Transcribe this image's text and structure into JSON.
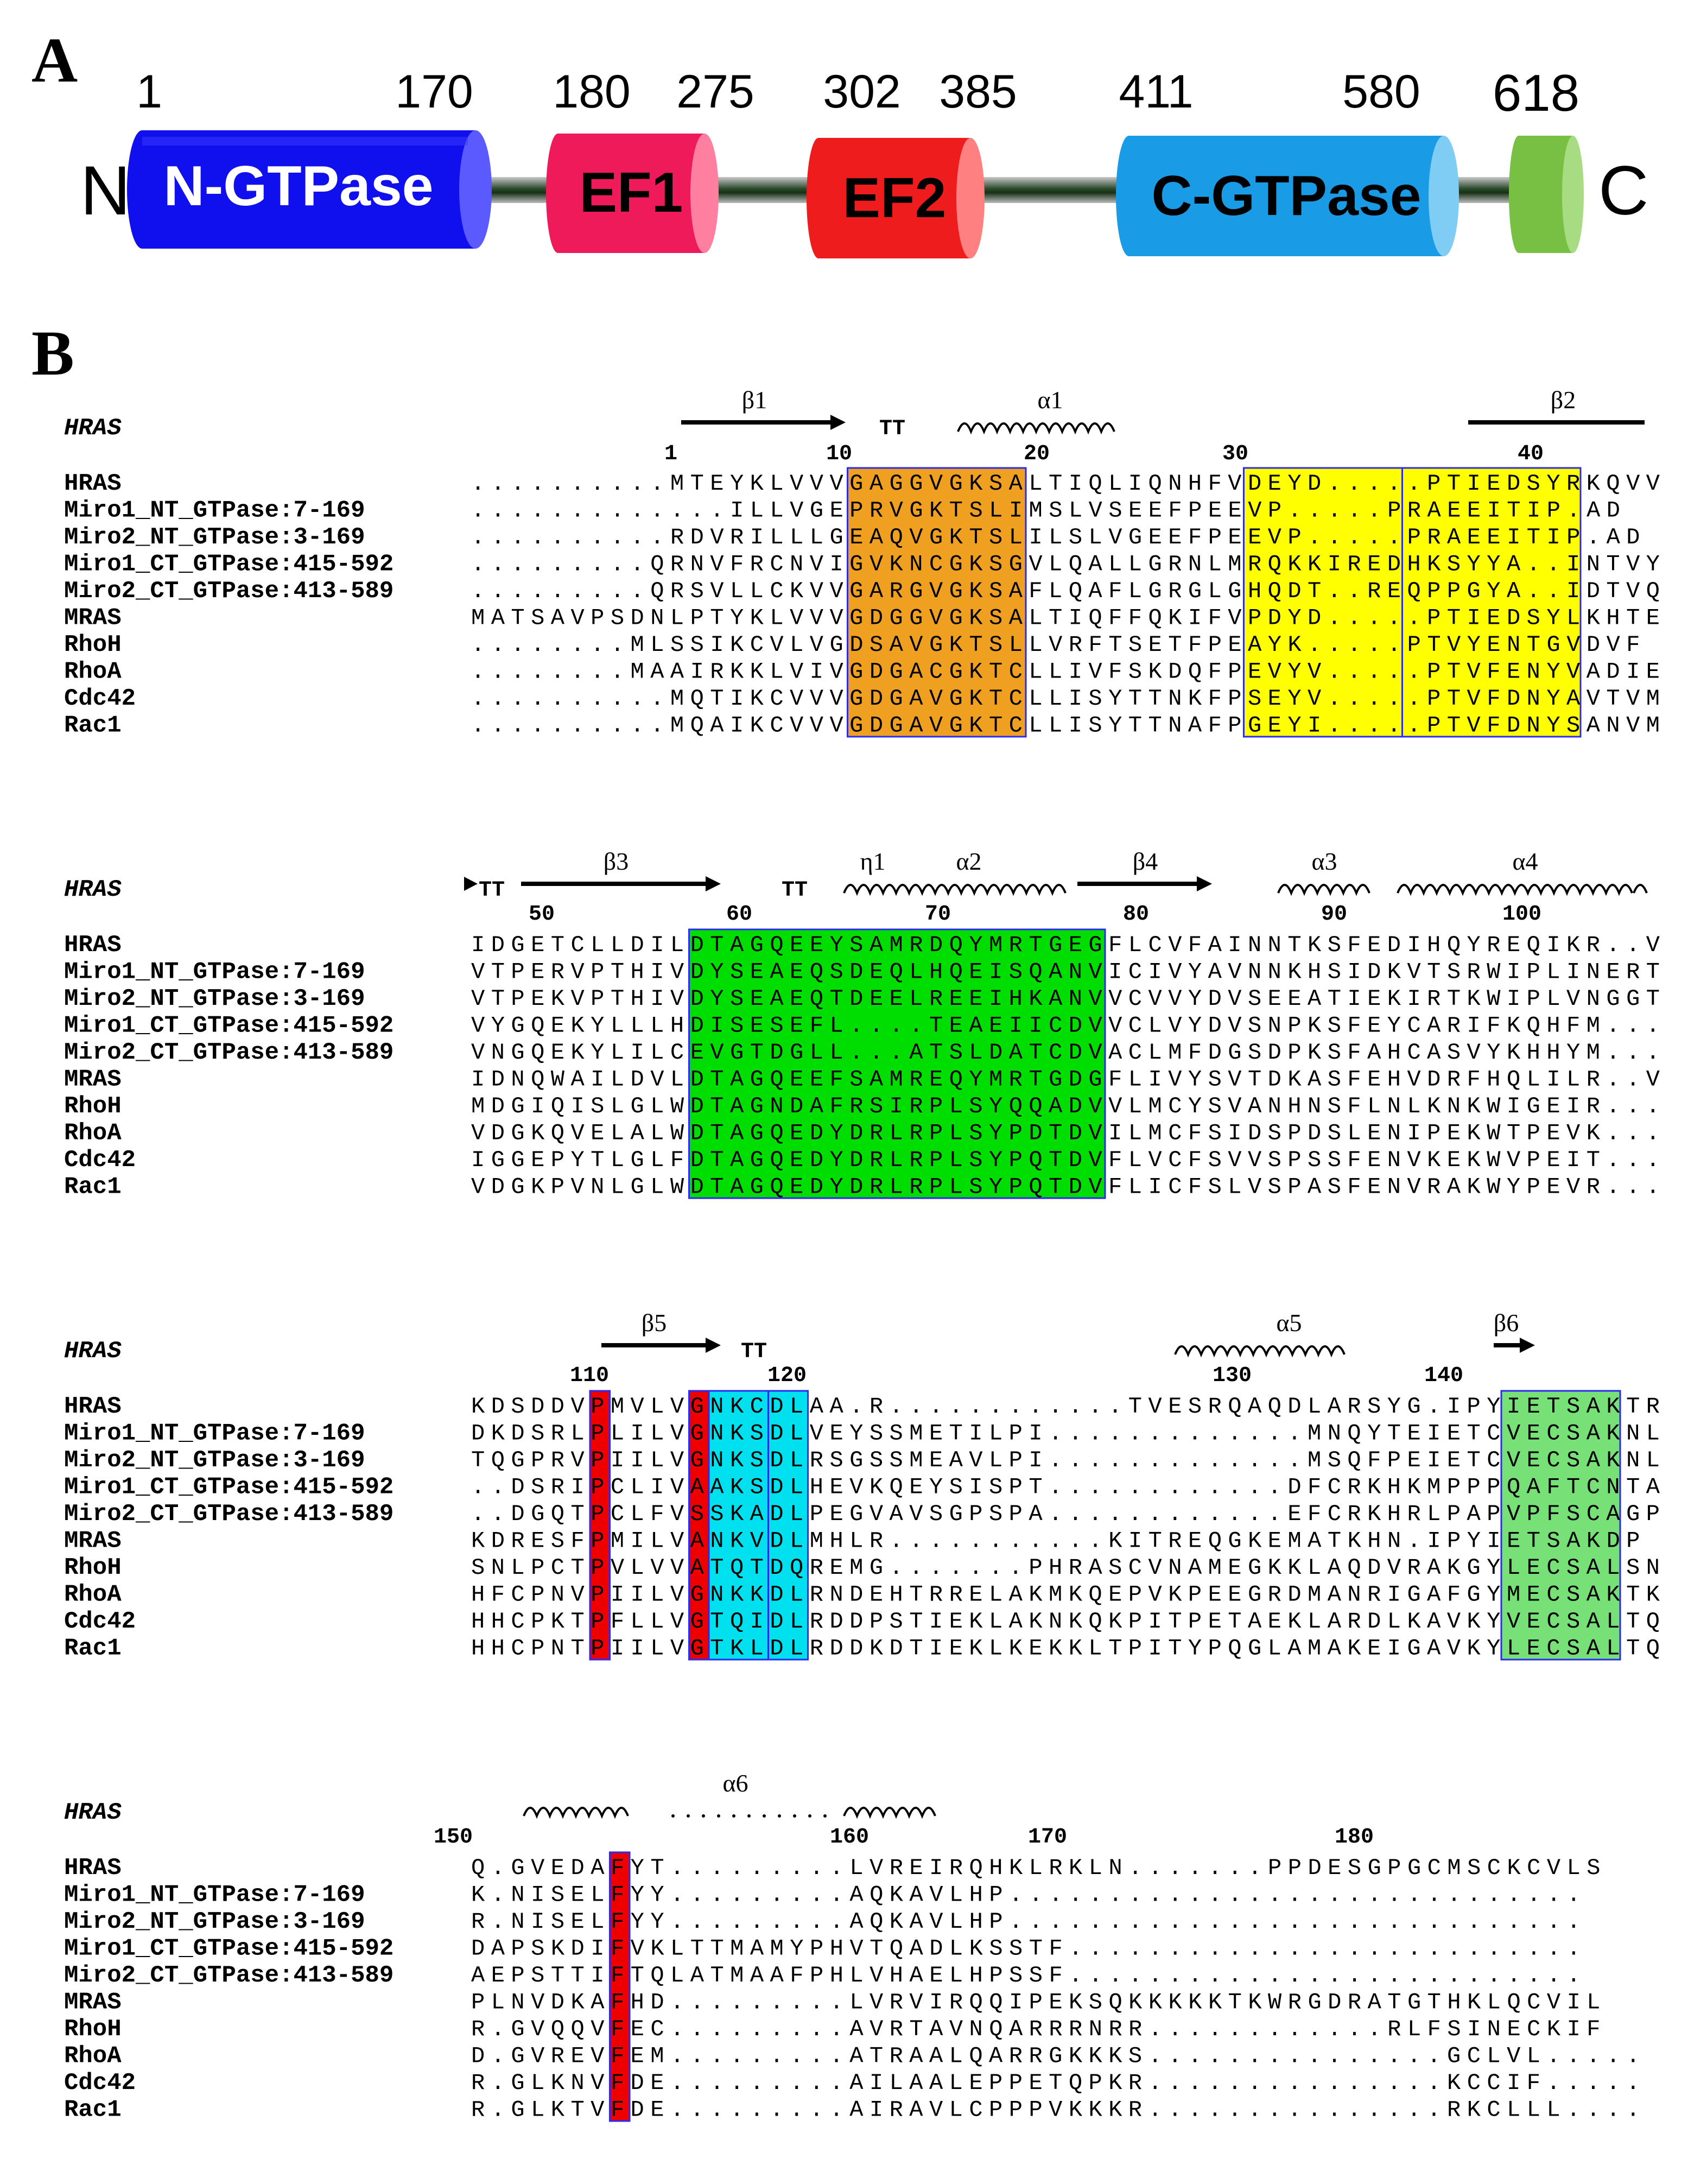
{
  "panel_a": {
    "letter": "A",
    "n_terminus": "N",
    "c_terminus": "C",
    "positions": [
      "1",
      "170",
      "180",
      "275",
      "302",
      "385",
      "411",
      "580",
      "618"
    ],
    "domains": [
      {
        "label": "N-GTPase",
        "color": "#1010ee"
      },
      {
        "label": "EF1",
        "color": "#ee1a5a"
      },
      {
        "label": "EF2",
        "color": "#ee1c1c"
      },
      {
        "label": "C-GTPase",
        "color": "#1a9be6"
      },
      {
        "label": "",
        "color": "#77c043"
      }
    ],
    "linker_color": "#1f3a1f"
  },
  "panel_b": {
    "letter": "B",
    "colors": {
      "orange": "#f0a020",
      "yellow": "#ffff00",
      "green": "#00dd00",
      "light_green": "#77e077",
      "cyan": "#00e0ee",
      "red": "#ee0000",
      "box_outline": "#2a2af0",
      "similar_text": "#ee2222"
    },
    "blocks": [
      {
        "ref_label": "HRAS",
        "ss_labels": [
          "β1",
          "α1",
          "β2"
        ],
        "tt": [
          "TT"
        ],
        "ruler": [
          "1",
          "10",
          "20",
          "30",
          "40"
        ],
        "rows": [
          {
            "name": "HRAS",
            "seq": "..........MTEYKLVVVGAGGVGKSALTIQLIQNHFVDEYD.....PTIEDSYRKQVV"
          },
          {
            "name": "Miro1_NT_GTPase:7-169",
            "seq": ".............ILLVGEPRVGKTSLIMSLVSEEFPEEVP.....PRAEEITIP.AD"
          },
          {
            "name": "Miro2_NT_GTPase:3-169",
            "seq": "..........RDVRILLLGEAQVGKTSLILSLVGEEFPEEVP.....PRAEEITIP.AD"
          },
          {
            "name": "Miro1_CT_GTPase:415-592",
            "seq": ".........QRNVFRCNVIGVKNCGKSGVLQALLGRNLMRQKKIREDHKSYYA..INTVY"
          },
          {
            "name": "Miro2_CT_GTPase:413-589",
            "seq": ".........QRSVLLCKVVGARGVGKSAFLQAFLGRGLGHQDT..REQPPGYA..IDTVQ"
          },
          {
            "name": "MRAS",
            "seq": "MATSAVPSDNLPTYKLVVVGDGGVGKSALTIQFFQKIFVPDYD.....PTIEDSYLKHTE"
          },
          {
            "name": "RhoH",
            "seq": "........MLSSIKCVLVGDSAVGKTSLLVRFTSETFPEAYK.....PTVYENTGVDVF"
          },
          {
            "name": "RhoA",
            "seq": "........MAAIRKKLVIVGDGACGKTCLLIVFSKDQFPEVYV.....PTVFENYVADIE"
          },
          {
            "name": "Cdc42",
            "seq": "..........MQTIKCVVVGDGAVGKTCLLISYTTNKFPSEYV.....PTVFDNYAVTVM"
          },
          {
            "name": "Rac1",
            "seq": "..........MQAIKCVVVGDGAVGKTCLLISYTTNAFPGEYI.....PTVFDNYSANVM"
          }
        ]
      },
      {
        "ref_label": "HRAS",
        "ss_labels": [
          "β3",
          "η1",
          "α2",
          "β4",
          "α3",
          "α4"
        ],
        "tt": [
          "TT",
          "TT"
        ],
        "ruler": [
          "50",
          "60",
          "70",
          "80",
          "90",
          "100"
        ],
        "rows": [
          {
            "name": "HRAS",
            "seq": "IDGETCLLDILDTAGQEEYSAMRDQYMRTGEGFLCVFAINNTKSFEDIHQYREQIKR..V"
          },
          {
            "name": "Miro1_NT_GTPase:7-169",
            "seq": "VTPERVPTHIVDYSEAEQSDEQLHQEISQANVICIVYAVNNKHSIDKVTSRWIPLINERT"
          },
          {
            "name": "Miro2_NT_GTPase:3-169",
            "seq": "VTPEKVPTHIVDYSEAEQTDEELREEIHKANVVCVVYDVSEEATIEKIRTKWIPLVNGGT"
          },
          {
            "name": "Miro1_CT_GTPase:415-592",
            "seq": "VYGQEKYLLLHDISESEFL....TEAEIICDVVCLVYDVSNPKSFEYCARIFKQHFM..."
          },
          {
            "name": "Miro2_CT_GTPase:413-589",
            "seq": "VNGQEKYLILCEVGTDGLL...ATSLDATCDVACLMFDGSDPKSFAHCASVYKHHYM..."
          },
          {
            "name": "MRAS",
            "seq": "IDNQWAILDVLDTAGQEEFSAMREQYMRTGDGFLIVYSVTDKASFEHVDRFHQLILR..V"
          },
          {
            "name": "RhoH",
            "seq": "MDGIQISLGLWDTAGNDAFRSIRPLSYQQADVVLMCYSVANHNSFLNLKNKWIGEIR..."
          },
          {
            "name": "RhoA",
            "seq": "VDGKQVELALWDTAGQEDYDRLRPLSYPDTDVILMCFSIDSPDSLENIPEKWTPEVK..."
          },
          {
            "name": "Cdc42",
            "seq": "IGGEPYTLGLFDTAGQEDYDRLRPLSYPQTDVFLVCFSVVSPSSFENVKEKWVPEIT..."
          },
          {
            "name": "Rac1",
            "seq": "VDGKPVNLGLWDTAGQEDYDRLRPLSYPQTDVFLICFSLVSPASFENVRAKWYPEVR..."
          }
        ]
      },
      {
        "ref_label": "HRAS",
        "ss_labels": [
          "β5",
          "α5",
          "β6"
        ],
        "tt": [
          "TT"
        ],
        "ruler": [
          "110",
          "120",
          "130",
          "140"
        ],
        "rows": [
          {
            "name": "HRAS",
            "seq": "KDSDDVPMVLVGNKCDLAA.R............TVESRQAQDLARSYG.IPYIETSAKTR"
          },
          {
            "name": "Miro1_NT_GTPase:7-169",
            "seq": "DKDSRLPLILVGNKSDLVEYSSMETILPI.............MNQYTEIETCVECSAKNL"
          },
          {
            "name": "Miro2_NT_GTPase:3-169",
            "seq": "TQGPRVPIILVGNKSDLRSGSSMEAVLPI.............MSQFPEIETCVECSAKNL"
          },
          {
            "name": "Miro1_CT_GTPase:415-592",
            "seq": "..DSRIPCLIVAAKSDLHEVKQEYSISPT............DFCRKHKMPPPQAFTCNTA"
          },
          {
            "name": "Miro2_CT_GTPase:413-589",
            "seq": "..DGQTPCLFVSSKADLPEGVAVSGPSPA............EFCRKHRLPAPVPFSCAGP"
          },
          {
            "name": "MRAS",
            "seq": "KDRESFPMILVANKVDLMHLR...........KITREQGKEMATKHN.IPYIETSAKDP"
          },
          {
            "name": "RhoH",
            "seq": "SNLPCTPVLVVATQTDQREMG.......PHRASCVNAMEGKKLAQDVRAKGYLECSALSN"
          },
          {
            "name": "RhoA",
            "seq": "HFCPNVPIILVGNKKDLRNDEHTRRELAKMKQEPVKPEEGRDMANRIGAFGYMECSAKTK"
          },
          {
            "name": "Cdc42",
            "seq": "HHCPKTPFLLVGTQIDLRDDPSTIEKLAKNKQKPITPETAEKLARDLKAVKYVECSALTQ"
          },
          {
            "name": "Rac1",
            "seq": "HHCPNTPIILVGTKLDLRDDKDTIEKLKEKKLTPITYPQGLAMAKEIGAVKYLECSALTQ"
          }
        ]
      },
      {
        "ref_label": "HRAS",
        "ss_labels": [
          "α6"
        ],
        "tt": [],
        "ruler": [
          "150",
          "160",
          "170",
          "180"
        ],
        "rows": [
          {
            "name": "HRAS",
            "seq": "Q.GVEDAFYT.........LVREIRQHKLRKLN.......PPDESGPGCMSCKCVLS"
          },
          {
            "name": "Miro1_NT_GTPase:7-169",
            "seq": "K.NISELFYY.........AQKAVLHP............................."
          },
          {
            "name": "Miro2_NT_GTPase:3-169",
            "seq": "R.NISELFYY.........AQKAVLHP............................."
          },
          {
            "name": "Miro1_CT_GTPase:415-592",
            "seq": "DAPSKDIFVKLTTMAMYPHVTQADLKSSTF.........................."
          },
          {
            "name": "Miro2_CT_GTPase:413-589",
            "seq": "AEPSTTIFTQLATMAAFPHLVHAELHPSSF.........................."
          },
          {
            "name": "MRAS",
            "seq": "PLNVDKAFHD.........LVRVIRQQIPEKSQKKKKKTKWRGDRATGTHKLQCVIL"
          },
          {
            "name": "RhoH",
            "seq": "R.GVQQVFEC.........AVRTAVNQARRRNRR............RLFSINECKIF"
          },
          {
            "name": "RhoA",
            "seq": "D.GVREVFEM.........ATRAALQARRGKKKS...............GCLVL....."
          },
          {
            "name": "Cdc42",
            "seq": "R.GLKNVFDE.........AILAALEPPETQPKR...............KCCIF....."
          },
          {
            "name": "Rac1",
            "seq": "R.GLKTVFDE.........AIRAVLCPPPVKKKR...............RKCLLL...."
          }
        ]
      }
    ]
  }
}
